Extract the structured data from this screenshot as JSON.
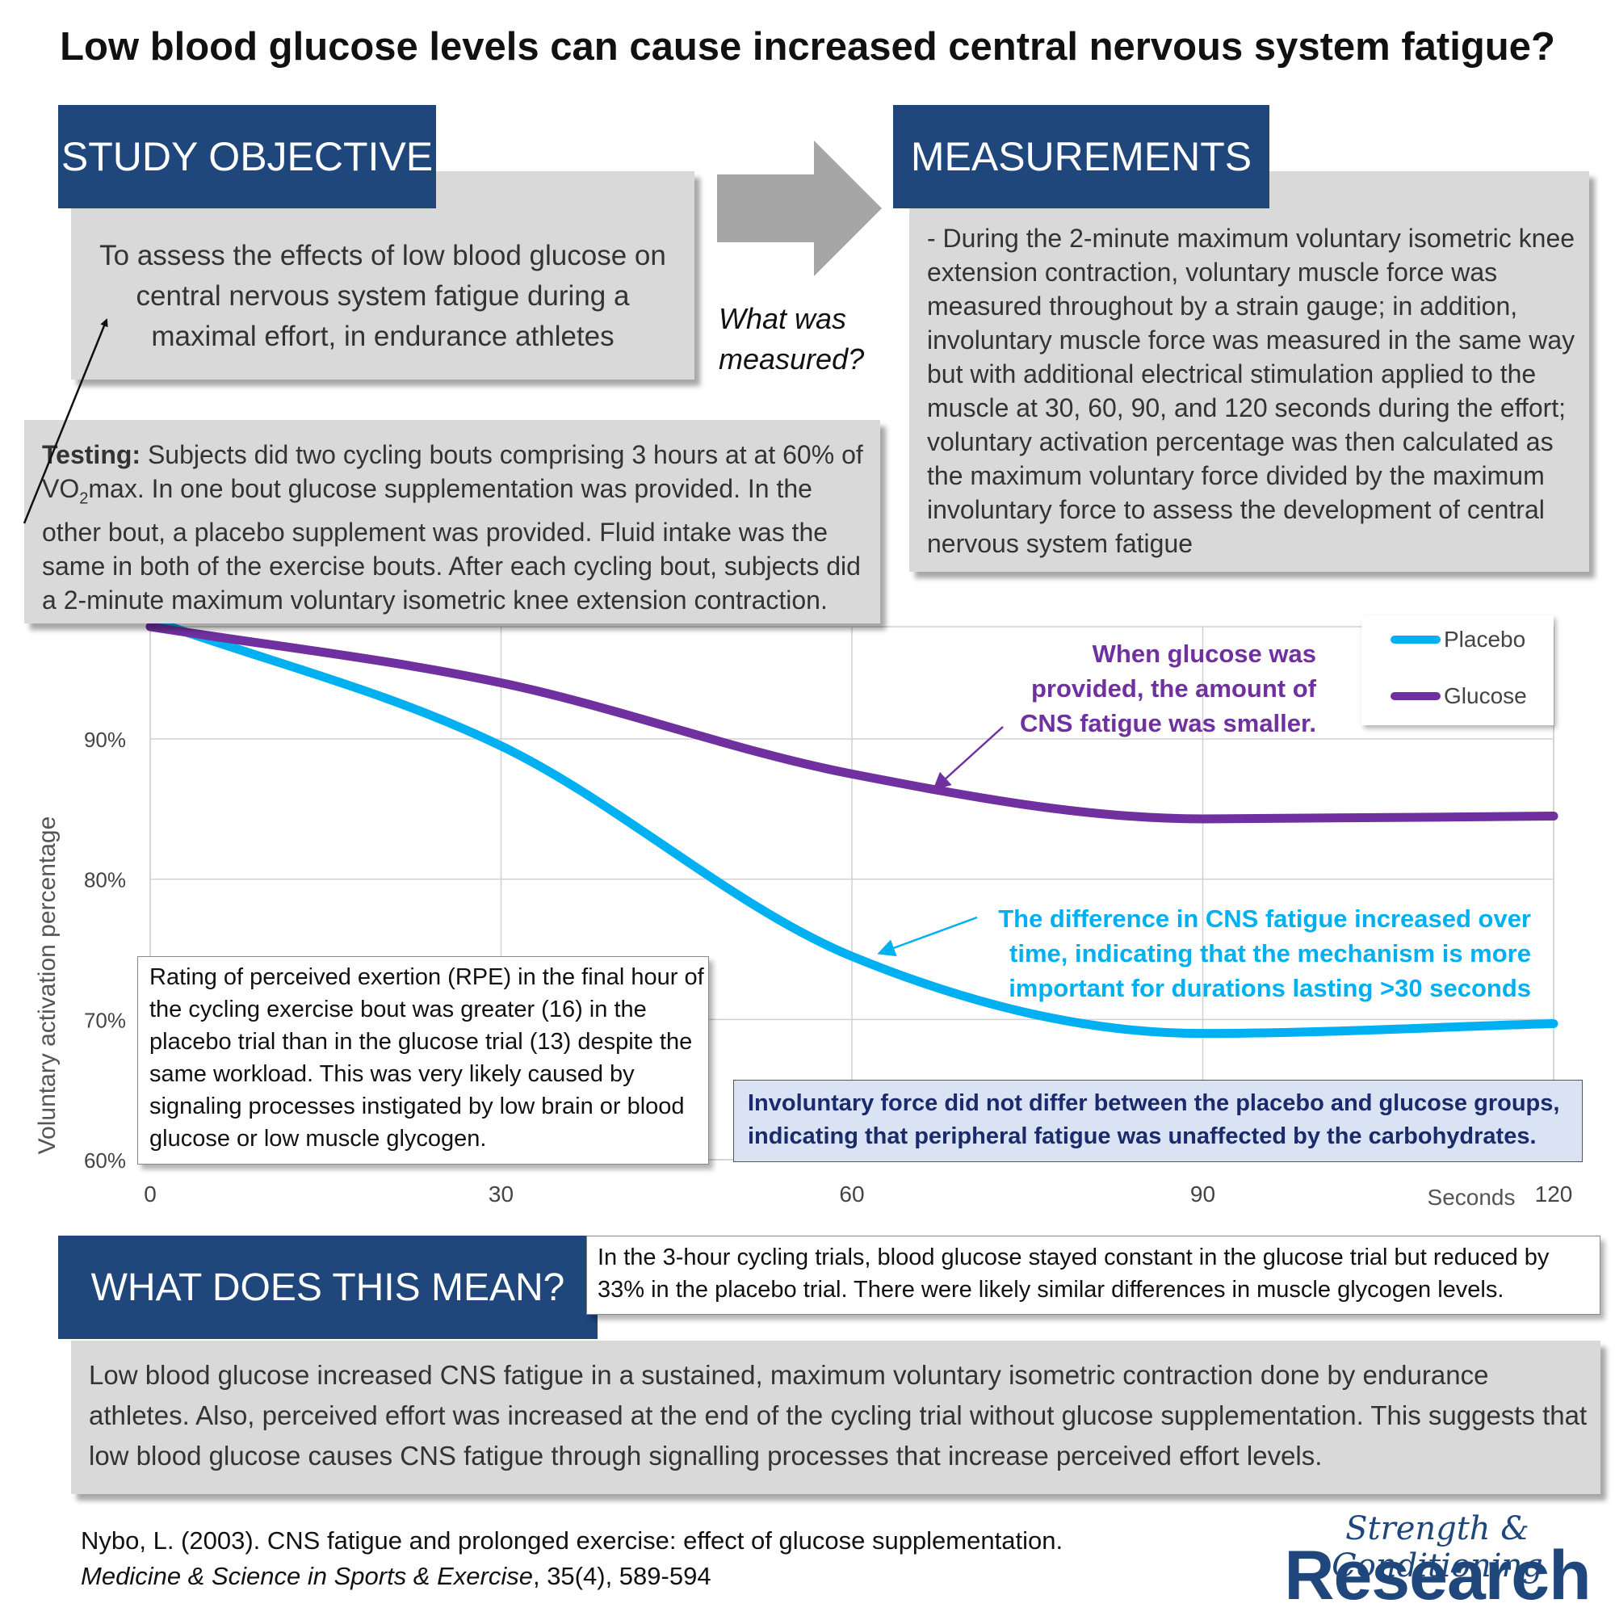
{
  "title": "Low blood glucose levels can cause increased central nervous system fatigue?",
  "objective": {
    "header": "STUDY OBJECTIVE",
    "text": "To assess the effects of low blood glucose on central nervous system fatigue during a maximal effort, in endurance athletes"
  },
  "arrow_label": "What was measured?",
  "measurements": {
    "header": "MEASUREMENTS",
    "text": "- During the 2-minute maximum voluntary isometric knee extension contraction, voluntary muscle force was measured throughout by a strain gauge; in addition, involuntary muscle force was measured in the same way but with additional electrical stimulation applied to the muscle at 30, 60, 90, and 120 seconds during the effort; voluntary activation percentage was then calculated as the maximum voluntary force divided by the maximum involuntary force to assess the development of central nervous system fatigue"
  },
  "testing": {
    "label": "Testing:",
    "text_a": " Subjects did two cycling bouts comprising 3 hours at at 60% of VO",
    "subscript": "2",
    "text_b": "max. In one bout glucose supplementation was provided. In the other bout, a placebo supplement was provided. Fluid intake was the same in both of the exercise bouts. After each cycling bout, subjects did a 2-minute maximum voluntary isometric knee extension contraction."
  },
  "callouts": {
    "glucose": "When glucose was provided, the amount of CNS fatigue was smaller.",
    "difference": "The difference in CNS fatigue increased over time, indicating that the mechanism is more important for durations lasting >30 seconds",
    "rpe": "Rating of perceived exertion (RPE) in the final hour of the cycling exercise bout was greater (16) in the placebo trial than in the glucose trial (13) despite the same workload. This was very likely caused by signaling processes instigated by low brain or blood glucose or low muscle glycogen.",
    "involuntary": "Involuntary force did not differ between the placebo and glucose groups, indicating that peripheral fatigue was unaffected by the carbohydrates."
  },
  "chart_data": {
    "type": "line",
    "ylabel": "Voluntary activation percentage",
    "xlabel": "Seconds",
    "xlim": [
      0,
      120
    ],
    "ylim": [
      60,
      98
    ],
    "x_ticks": [
      "0",
      "30",
      "60",
      "90",
      "120"
    ],
    "y_ticks": [
      "60%",
      "70%",
      "80%",
      "90%"
    ],
    "x": [
      0,
      30,
      60,
      90,
      120
    ],
    "series": [
      {
        "name": "Placebo",
        "color": "#00b0f0",
        "values": [
          98.5,
          89.5,
          74.5,
          69,
          69.7
        ]
      },
      {
        "name": "Glucose",
        "color": "#7030a0",
        "values": [
          98,
          94,
          87.5,
          84.3,
          84.5
        ]
      }
    ],
    "legend_position": "top-right",
    "grid": true
  },
  "meaning": {
    "header": "WHAT DOES THIS MEAN?",
    "note": "In the 3-hour cycling trials, blood glucose stayed constant in the glucose trial but reduced by 33% in the placebo trial. There were likely similar differences in muscle glycogen levels.",
    "text": "Low blood glucose increased CNS fatigue in a sustained, maximum voluntary isometric contraction done by endurance athletes. Also, perceived effort was increased at the end of the cycling trial without glucose supplementation. This suggests that low blood glucose causes CNS fatigue through signalling processes that increase perceived effort levels."
  },
  "citation": {
    "line1": "Nybo, L. (2003). CNS fatigue and prolonged exercise: effect of glucose supplementation.",
    "journal": "Medicine & Science in Sports & Exercise",
    "rest": ", 35(4), 589-594"
  },
  "brand": {
    "top": "Strength & Conditioning",
    "bottom": "Research"
  },
  "colors": {
    "navy": "#1f477c",
    "purple": "#7030a0",
    "blue": "#00b0f0",
    "panel_grey": "#d9d9d9"
  }
}
